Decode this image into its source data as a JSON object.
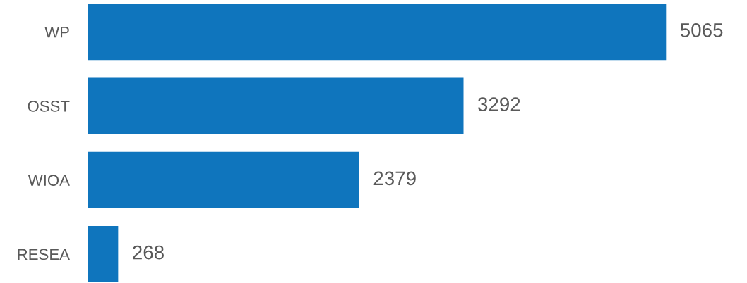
{
  "chart_data": {
    "type": "bar",
    "orientation": "horizontal",
    "categories": [
      "WP",
      "OSST",
      "WIOA",
      "RESEA"
    ],
    "values": [
      5065,
      3292,
      2379,
      268
    ],
    "color": "#0f75bd",
    "data_labels": true,
    "tick_labels": "y",
    "grid": false,
    "legend": false
  }
}
